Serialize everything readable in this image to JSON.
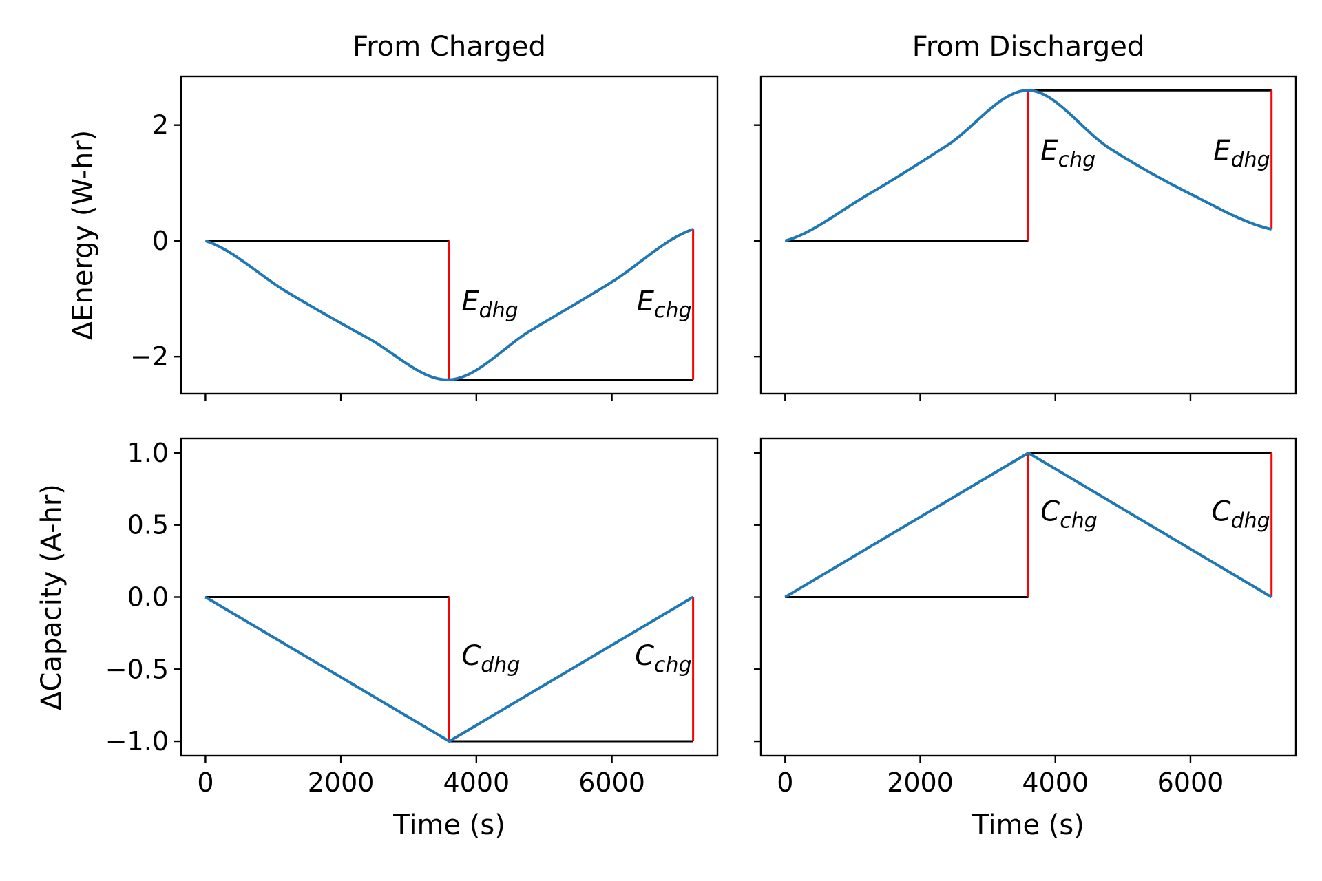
{
  "chart_data": [
    {
      "type": "line",
      "title": "From Charged",
      "xlabel": "",
      "ylabel": "ΔEnergy (W-hr)",
      "xlim": [
        -360,
        7560
      ],
      "ylim": [
        -2.64,
        2.84
      ],
      "xticks": [
        0,
        2000,
        4000,
        6000
      ],
      "yticks": [
        -2,
        0,
        2
      ],
      "xtick_labels_visible": false,
      "ytick_labels_visible": true,
      "series": [
        {
          "color": "#1f77b4",
          "x": [
            0,
            1200,
            2400,
            3600,
            4800,
            6000,
            7200
          ],
          "y": [
            0,
            -0.88,
            -1.68,
            -2.4,
            -1.55,
            -0.71,
            0.2
          ]
        }
      ],
      "reference_lines": [
        {
          "color": "#000000",
          "x": [
            0,
            3600
          ],
          "y": [
            0,
            0
          ]
        },
        {
          "color": "#000000",
          "x": [
            3600,
            7200
          ],
          "y": [
            -2.4,
            -2.4
          ]
        },
        {
          "color": "#ff0000",
          "x": [
            3600,
            3600
          ],
          "y": [
            0,
            -2.4
          ]
        },
        {
          "color": "#ff0000",
          "x": [
            7200,
            7200
          ],
          "y": [
            -2.4,
            0.2
          ]
        }
      ],
      "annotations": [
        {
          "base": "E",
          "sub": "dhg",
          "x": 3700,
          "y": -1.2,
          "anchor": "start"
        },
        {
          "base": "E",
          "sub": "chg",
          "x": 7200,
          "y": -1.2,
          "anchor": "end"
        }
      ]
    },
    {
      "type": "line",
      "title": "From Discharged",
      "xlabel": "",
      "ylabel": "",
      "xlim": [
        -360,
        7560
      ],
      "ylim": [
        -2.64,
        2.84
      ],
      "xticks": [
        0,
        2000,
        4000,
        6000
      ],
      "yticks": [
        -2,
        0,
        2
      ],
      "xtick_labels_visible": false,
      "ytick_labels_visible": false,
      "series": [
        {
          "color": "#1f77b4",
          "x": [
            0,
            1200,
            2400,
            3600,
            4800,
            6000,
            7200
          ],
          "y": [
            0,
            0.78,
            1.65,
            2.6,
            1.6,
            0.81,
            0.2
          ]
        }
      ],
      "reference_lines": [
        {
          "color": "#000000",
          "x": [
            0,
            3600
          ],
          "y": [
            0,
            0
          ]
        },
        {
          "color": "#000000",
          "x": [
            3600,
            7200
          ],
          "y": [
            2.6,
            2.6
          ]
        },
        {
          "color": "#ff0000",
          "x": [
            3600,
            3600
          ],
          "y": [
            0,
            2.6
          ]
        },
        {
          "color": "#ff0000",
          "x": [
            7200,
            7200
          ],
          "y": [
            2.6,
            0.2
          ]
        }
      ],
      "annotations": [
        {
          "base": "E",
          "sub": "chg",
          "x": 3700,
          "y": 1.4,
          "anchor": "start"
        },
        {
          "base": "E",
          "sub": "dhg",
          "x": 7200,
          "y": 1.4,
          "anchor": "end"
        }
      ]
    },
    {
      "type": "line",
      "title": "",
      "xlabel": "Time (s)",
      "ylabel": "ΔCapacity (A-hr)",
      "xlim": [
        -360,
        7560
      ],
      "ylim": [
        -1.1,
        1.1
      ],
      "xticks": [
        0,
        2000,
        4000,
        6000
      ],
      "yticks": [
        -1.0,
        -0.5,
        0.0,
        0.5,
        1.0
      ],
      "xtick_labels": [
        "0",
        "2000",
        "4000",
        "6000"
      ],
      "ytick_labels": [
        "−1.0",
        "−0.5",
        "0.0",
        "0.5",
        "1.0"
      ],
      "xtick_labels_visible": true,
      "ytick_labels_visible": true,
      "series": [
        {
          "color": "#1f77b4",
          "x": [
            0,
            3600,
            7200
          ],
          "y": [
            0,
            -1.0,
            0
          ]
        }
      ],
      "reference_lines": [
        {
          "color": "#000000",
          "x": [
            0,
            3600
          ],
          "y": [
            0,
            0
          ]
        },
        {
          "color": "#000000",
          "x": [
            3600,
            7200
          ],
          "y": [
            -1.0,
            -1.0
          ]
        },
        {
          "color": "#ff0000",
          "x": [
            3600,
            3600
          ],
          "y": [
            0,
            -1.0
          ]
        },
        {
          "color": "#ff0000",
          "x": [
            7200,
            7200
          ],
          "y": [
            -1.0,
            0
          ]
        }
      ],
      "annotations": [
        {
          "base": "C",
          "sub": "dhg",
          "x": 3700,
          "y": -0.47,
          "anchor": "start"
        },
        {
          "base": "C",
          "sub": "chg",
          "x": 7200,
          "y": -0.47,
          "anchor": "end"
        }
      ]
    },
    {
      "type": "line",
      "title": "",
      "xlabel": "Time (s)",
      "ylabel": "",
      "xlim": [
        -360,
        7560
      ],
      "ylim": [
        -1.1,
        1.1
      ],
      "xticks": [
        0,
        2000,
        4000,
        6000
      ],
      "yticks": [
        -1.0,
        -0.5,
        0.0,
        0.5,
        1.0
      ],
      "xtick_labels": [
        "0",
        "2000",
        "4000",
        "6000"
      ],
      "xtick_labels_visible": true,
      "ytick_labels_visible": false,
      "series": [
        {
          "color": "#1f77b4",
          "x": [
            0,
            3600,
            7200
          ],
          "y": [
            0,
            1.0,
            0
          ]
        }
      ],
      "reference_lines": [
        {
          "color": "#000000",
          "x": [
            0,
            3600
          ],
          "y": [
            0,
            0
          ]
        },
        {
          "color": "#000000",
          "x": [
            3600,
            7200
          ],
          "y": [
            1.0,
            1.0
          ]
        },
        {
          "color": "#ff0000",
          "x": [
            3600,
            3600
          ],
          "y": [
            0,
            1.0
          ]
        },
        {
          "color": "#ff0000",
          "x": [
            7200,
            7200
          ],
          "y": [
            1.0,
            0
          ]
        }
      ],
      "annotations": [
        {
          "base": "C",
          "sub": "chg",
          "x": 3700,
          "y": 0.53,
          "anchor": "start"
        },
        {
          "base": "C",
          "sub": "dhg",
          "x": 7200,
          "y": 0.53,
          "anchor": "end"
        }
      ]
    }
  ]
}
